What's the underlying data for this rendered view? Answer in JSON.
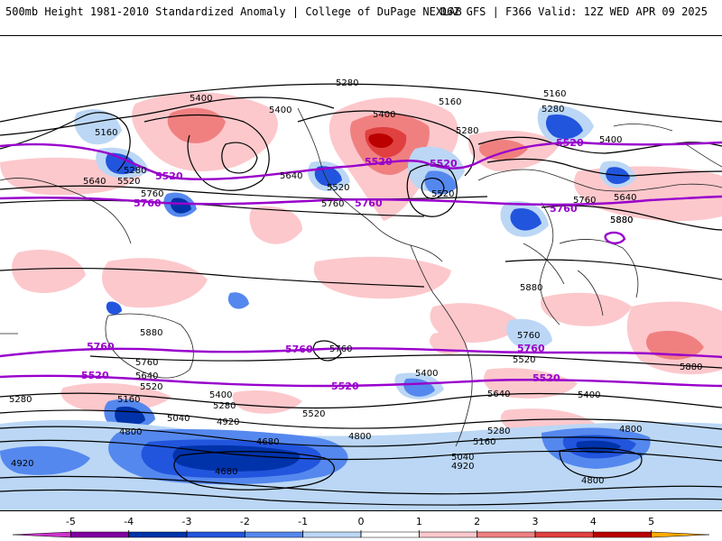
{
  "header": {
    "left_title": "500mb Height 1981-2010 Standardized Anomaly | College of DuPage NEXLAB",
    "right_title": "06Z GFS | F366 Valid: 12Z WED APR 09 2025"
  },
  "contour_labels_black": [
    "5280",
    "5160",
    "5400",
    "5400",
    "5160",
    "5280",
    "5400",
    "5160",
    "5280",
    "5640",
    "5280",
    "5520",
    "5400",
    "5640",
    "5760",
    "5520",
    "5640",
    "5520",
    "5760",
    "5760",
    "5880",
    "5880",
    "5880",
    "5760",
    "5760",
    "5400",
    "5280",
    "5400",
    "5640",
    "5520",
    "5520",
    "5280",
    "5160",
    "5040",
    "4920",
    "4800",
    "4680",
    "4680",
    "4800",
    "4920",
    "5040",
    "5160",
    "5280",
    "5640",
    "5880",
    "5520",
    "5400",
    "4800",
    "4920",
    "4800",
    "5760",
    "5880"
  ],
  "contour_labels_purple": [
    "5520",
    "5520",
    "5760",
    "5760",
    "5760",
    "5520",
    "5760",
    "5760",
    "5520",
    "5760",
    "5520",
    "5520",
    "5520"
  ],
  "colorbar": {
    "ticks": [
      "-5",
      "-4",
      "-3",
      "-2",
      "-1",
      "0",
      "1",
      "2",
      "3",
      "4",
      "5"
    ],
    "colors": [
      "#cc33cc",
      "#8000a0",
      "#0033aa",
      "#2255dd",
      "#5588ee",
      "#bbd7f5",
      "#ffffff",
      "#fcc8cc",
      "#f08080",
      "#e04040",
      "#bb0000",
      "#ffaa00"
    ]
  }
}
